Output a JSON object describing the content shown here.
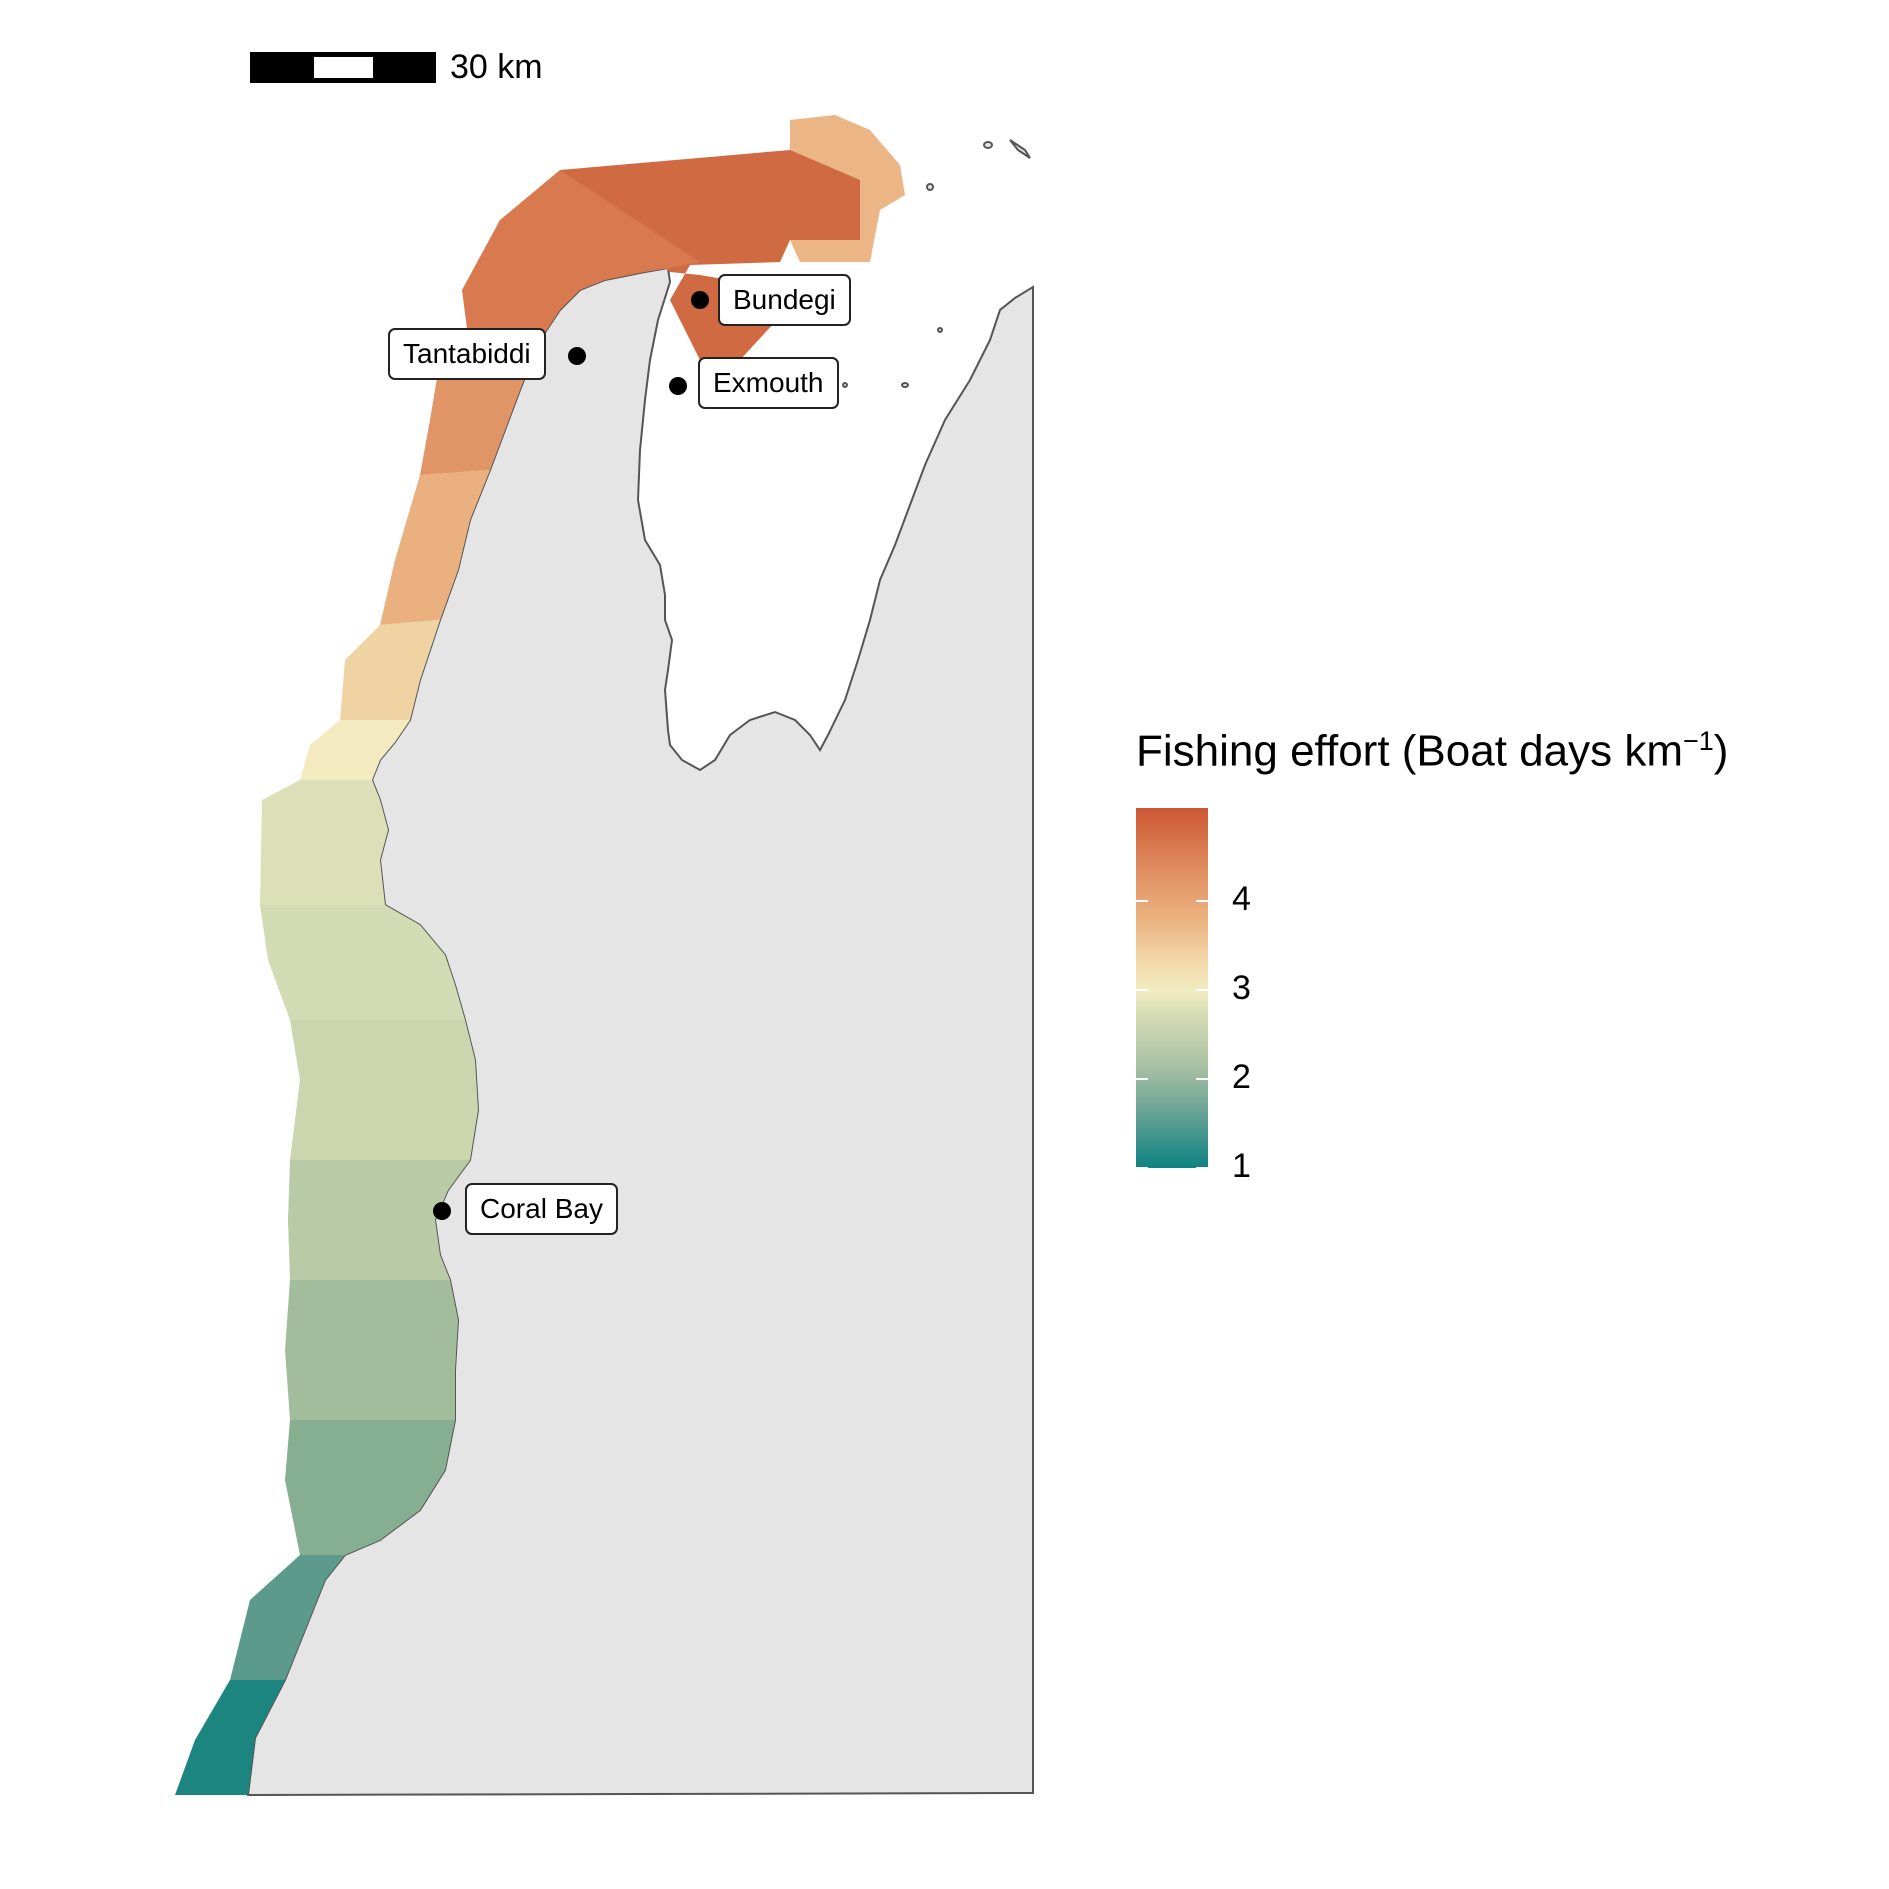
{
  "scale_bar": {
    "label": "30 km"
  },
  "places": [
    {
      "name": "Bundegi"
    },
    {
      "name": "Tantabiddi"
    },
    {
      "name": "Exmouth"
    },
    {
      "name": "Coral Bay"
    }
  ],
  "legend": {
    "title": "Fishing effort (Boat days km",
    "superscript": "−1",
    "title_close": ")",
    "ticks": [
      "4",
      "3",
      "2",
      "1"
    ],
    "colors": {
      "low": "#0d8383",
      "mid": "#f2ecc2",
      "high": "#cc5633"
    }
  },
  "colors": {
    "land": "#e5e5e5",
    "coast": "#555555"
  }
}
